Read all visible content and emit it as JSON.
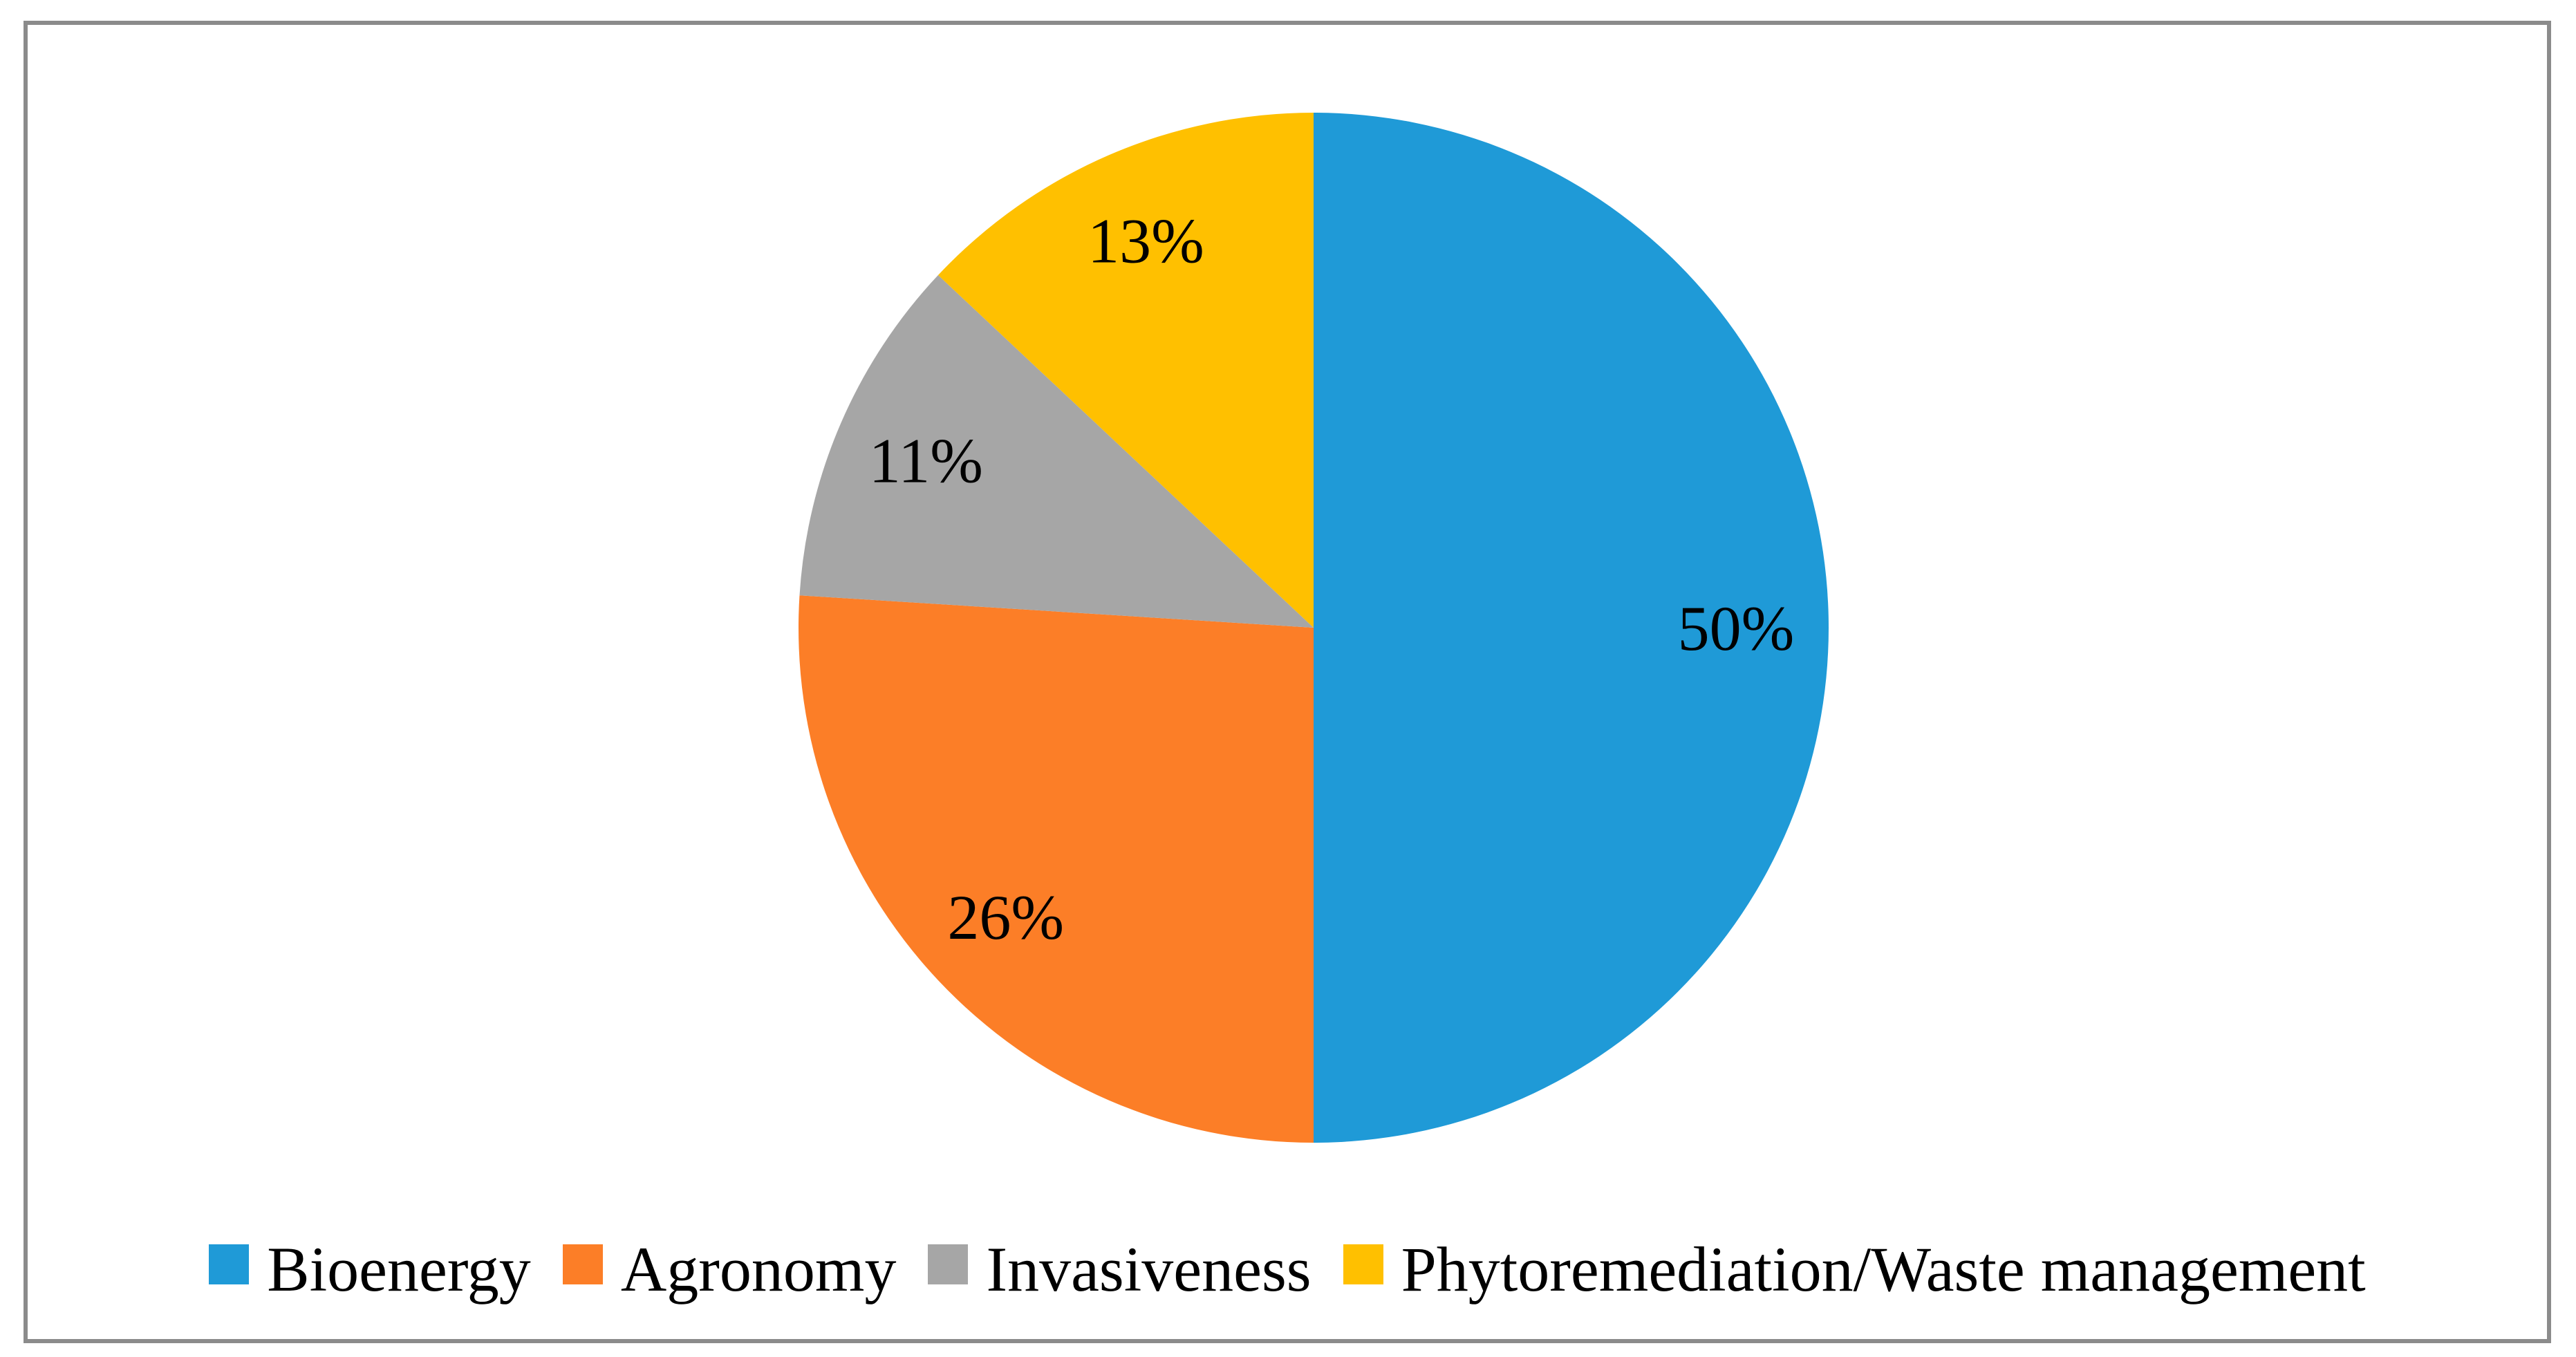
{
  "figure": {
    "background_color": "#ffffff",
    "frame_border_color": "#8b8b8b"
  },
  "chart_data": {
    "type": "pie",
    "title": "",
    "categories": [
      "Bioenergy",
      "Agronomy",
      "Invasiveness",
      "Phytoremediation/Waste management"
    ],
    "values": [
      50,
      26,
      11,
      13
    ],
    "labels": [
      "50%",
      "26%",
      "11%",
      "13%"
    ],
    "unit": "%",
    "colors": [
      "#1f9ad7",
      "#fc7e27",
      "#a6a6a6",
      "#ffc000"
    ],
    "label_color": "#000000",
    "start_angle_deg": 0,
    "direction": "clockwise",
    "label_radius_fraction": 0.82,
    "legend_position": "bottom"
  },
  "legend": {
    "items": [
      {
        "label": "Bioenergy",
        "color": "#1f9ad7"
      },
      {
        "label": "Agronomy",
        "color": "#fc7e27"
      },
      {
        "label": "Invasiveness",
        "color": "#a6a6a6"
      },
      {
        "label": "Phytoremediation/Waste management",
        "color": "#ffc000"
      }
    ]
  }
}
